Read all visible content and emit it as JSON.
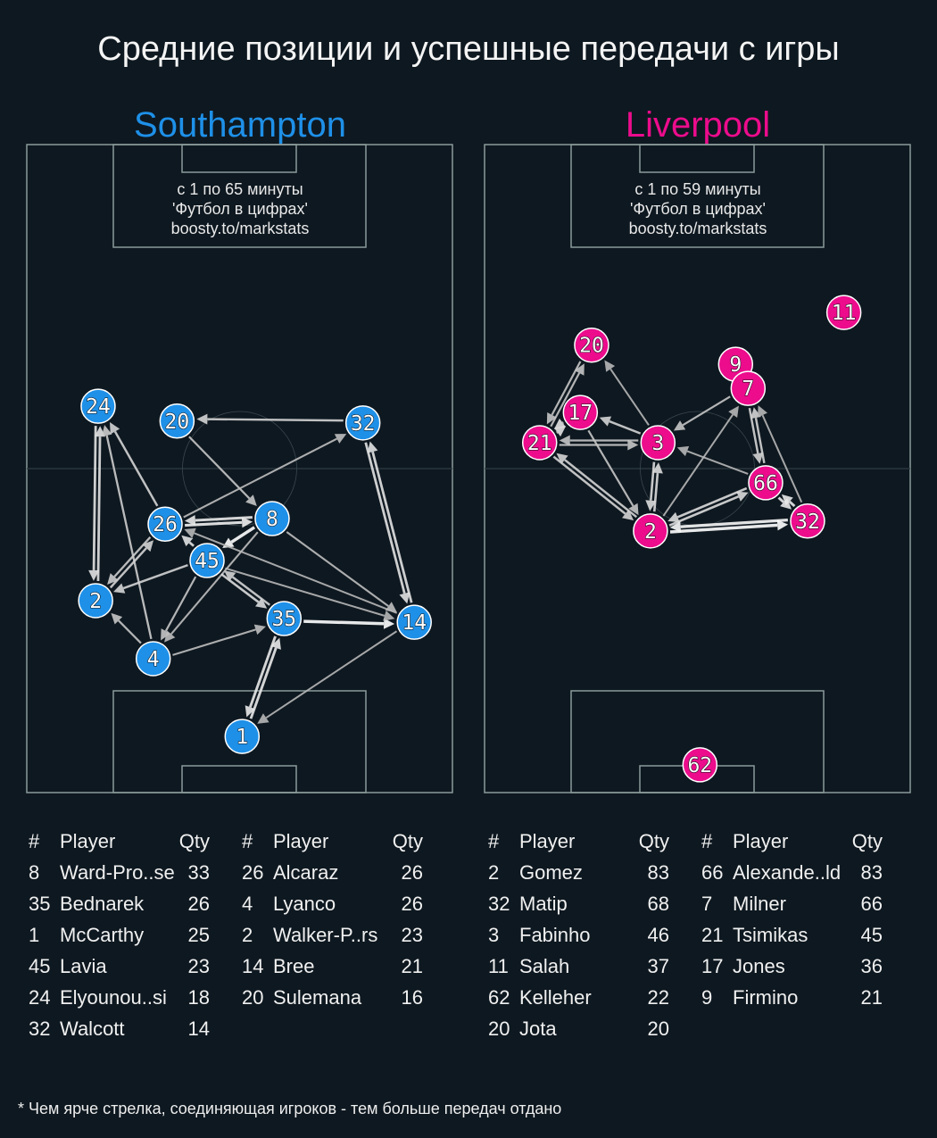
{
  "title": "Средние позиции и успешные передачи с игры",
  "footnote": "* Чем ярче стрелка, соединяющая игроков - тем больше передач отдано",
  "colors": {
    "background": "#0e1820",
    "pitch_lines": "#8a9a9a",
    "southampton": "#1e90e8",
    "liverpool": "#ec0c8c"
  },
  "teams": [
    {
      "name": "Southampton",
      "color": "#1e90e8",
      "info": [
        "с 1 по 65 минуты",
        "'Футбол в цифрах'",
        "boosty.to/markstats"
      ],
      "players": [
        {
          "num": "24",
          "x": 11.4,
          "y": 62.6
        },
        {
          "num": "20",
          "x": 24.0,
          "y": 60.2
        },
        {
          "num": "32",
          "x": 53.7,
          "y": 59.9
        },
        {
          "num": "26",
          "x": 22.1,
          "y": 43.5
        },
        {
          "num": "8",
          "x": 39.2,
          "y": 44.4
        },
        {
          "num": "45",
          "x": 28.8,
          "y": 37.6
        },
        {
          "num": "2",
          "x": 11.0,
          "y": 31.1
        },
        {
          "num": "35",
          "x": 41.1,
          "y": 28.2
        },
        {
          "num": "14",
          "x": 61.9,
          "y": 27.6
        },
        {
          "num": "4",
          "x": 20.2,
          "y": 21.7
        },
        {
          "num": "1",
          "x": 34.4,
          "y": 9.1
        }
      ],
      "passes": [
        {
          "from": "32",
          "to": "20",
          "intensity": 0.7
        },
        {
          "from": "20",
          "to": "8",
          "intensity": 0.6
        },
        {
          "from": "26",
          "to": "32",
          "intensity": 0.55
        },
        {
          "from": "26",
          "to": "24",
          "intensity": 0.7
        },
        {
          "from": "2",
          "to": "24",
          "intensity": 0.8
        },
        {
          "from": "24",
          "to": "2",
          "intensity": 0.8
        },
        {
          "from": "4",
          "to": "24",
          "intensity": 0.65
        },
        {
          "from": "26",
          "to": "8",
          "intensity": 0.9
        },
        {
          "from": "8",
          "to": "26",
          "intensity": 0.85
        },
        {
          "from": "8",
          "to": "45",
          "intensity": 1.0
        },
        {
          "from": "45",
          "to": "26",
          "intensity": 0.8
        },
        {
          "from": "45",
          "to": "2",
          "intensity": 0.7
        },
        {
          "from": "2",
          "to": "26",
          "intensity": 0.7
        },
        {
          "from": "26",
          "to": "2",
          "intensity": 0.65
        },
        {
          "from": "45",
          "to": "4",
          "intensity": 0.6
        },
        {
          "from": "8",
          "to": "4",
          "intensity": 0.55
        },
        {
          "from": "4",
          "to": "2",
          "intensity": 0.6
        },
        {
          "from": "4",
          "to": "35",
          "intensity": 0.55
        },
        {
          "from": "45",
          "to": "35",
          "intensity": 0.75
        },
        {
          "from": "35",
          "to": "45",
          "intensity": 0.7
        },
        {
          "from": "35",
          "to": "14",
          "intensity": 1.0
        },
        {
          "from": "8",
          "to": "14",
          "intensity": 0.55
        },
        {
          "from": "45",
          "to": "14",
          "intensity": 0.5
        },
        {
          "from": "14",
          "to": "26",
          "intensity": 0.5
        },
        {
          "from": "32",
          "to": "14",
          "intensity": 0.8
        },
        {
          "from": "14",
          "to": "32",
          "intensity": 0.8
        },
        {
          "from": "14",
          "to": "1",
          "intensity": 0.5
        },
        {
          "from": "1",
          "to": "35",
          "intensity": 0.85
        },
        {
          "from": "35",
          "to": "1",
          "intensity": 0.85
        }
      ],
      "table": {
        "headers": [
          "#",
          "Player",
          "Qty"
        ],
        "columns": [
          [
            [
              "8",
              "Ward-Pro..se",
              "33"
            ],
            [
              "35",
              "Bednarek",
              "26"
            ],
            [
              "1",
              "McCarthy",
              "25"
            ],
            [
              "45",
              "Lavia",
              "23"
            ],
            [
              "24",
              "Elyounou..si",
              "18"
            ],
            [
              "32",
              "Walcott",
              "14"
            ]
          ],
          [
            [
              "26",
              "Alcaraz",
              "26"
            ],
            [
              "4",
              "Lyanco",
              "26"
            ],
            [
              "2",
              "Walker-P..rs",
              "23"
            ],
            [
              "14",
              "Bree",
              "21"
            ],
            [
              "20",
              "Sulemana",
              "16"
            ]
          ]
        ]
      }
    },
    {
      "name": "Liverpool",
      "color": "#ec0c8c",
      "info": [
        "с 1 по 59 минуты",
        "'Футбол в цифрах'",
        "boosty.to/markstats"
      ],
      "players": [
        {
          "num": "11",
          "x": 57.4,
          "y": 77.8
        },
        {
          "num": "20",
          "x": 17.1,
          "y": 72.5
        },
        {
          "num": "9",
          "x": 40.1,
          "y": 69.4
        },
        {
          "num": "7",
          "x": 42.1,
          "y": 65.5
        },
        {
          "num": "17",
          "x": 15.3,
          "y": 61.6
        },
        {
          "num": "21",
          "x": 8.8,
          "y": 56.7
        },
        {
          "num": "3",
          "x": 27.7,
          "y": 56.7
        },
        {
          "num": "66",
          "x": 44.9,
          "y": 50.2
        },
        {
          "num": "32",
          "x": 51.6,
          "y": 44.0
        },
        {
          "num": "2",
          "x": 26.5,
          "y": 42.4
        },
        {
          "num": "62",
          "x": 34.4,
          "y": 4.5
        }
      ],
      "passes": [
        {
          "from": "21",
          "to": "20",
          "intensity": 0.6
        },
        {
          "from": "20",
          "to": "21",
          "intensity": 0.6
        },
        {
          "from": "3",
          "to": "20",
          "intensity": 0.5
        },
        {
          "from": "17",
          "to": "21",
          "intensity": 0.8
        },
        {
          "from": "21",
          "to": "17",
          "intensity": 0.8
        },
        {
          "from": "3",
          "to": "17",
          "intensity": 0.7
        },
        {
          "from": "3",
          "to": "21",
          "intensity": 0.6
        },
        {
          "from": "21",
          "to": "3",
          "intensity": 0.6
        },
        {
          "from": "21",
          "to": "2",
          "intensity": 0.7
        },
        {
          "from": "2",
          "to": "21",
          "intensity": 0.7
        },
        {
          "from": "17",
          "to": "2",
          "intensity": 0.6
        },
        {
          "from": "3",
          "to": "2",
          "intensity": 0.75
        },
        {
          "from": "2",
          "to": "3",
          "intensity": 0.75
        },
        {
          "from": "2",
          "to": "7",
          "intensity": 0.5
        },
        {
          "from": "7",
          "to": "3",
          "intensity": 0.6
        },
        {
          "from": "66",
          "to": "3",
          "intensity": 0.5
        },
        {
          "from": "2",
          "to": "66",
          "intensity": 0.75
        },
        {
          "from": "66",
          "to": "2",
          "intensity": 0.75
        },
        {
          "from": "2",
          "to": "32",
          "intensity": 1.0
        },
        {
          "from": "32",
          "to": "2",
          "intensity": 0.95
        },
        {
          "from": "7",
          "to": "66",
          "intensity": 0.7
        },
        {
          "from": "66",
          "to": "7",
          "intensity": 0.7
        },
        {
          "from": "32",
          "to": "7",
          "intensity": 0.5
        },
        {
          "from": "32",
          "to": "66",
          "intensity": 0.85
        },
        {
          "from": "66",
          "to": "32",
          "intensity": 0.85
        }
      ],
      "table": {
        "headers": [
          "#",
          "Player",
          "Qty"
        ],
        "columns": [
          [
            [
              "2",
              "Gomez",
              "83"
            ],
            [
              "32",
              "Matip",
              "68"
            ],
            [
              "3",
              "Fabinho",
              "46"
            ],
            [
              "11",
              "Salah",
              "37"
            ],
            [
              "62",
              "Kelleher",
              "22"
            ],
            [
              "20",
              "Jota",
              "20"
            ]
          ],
          [
            [
              "66",
              "Alexande..ld",
              "83"
            ],
            [
              "7",
              "Milner",
              "66"
            ],
            [
              "21",
              "Tsimikas",
              "45"
            ],
            [
              "17",
              "Jones",
              "36"
            ],
            [
              "9",
              "Firmino",
              "21"
            ]
          ]
        ]
      }
    }
  ]
}
